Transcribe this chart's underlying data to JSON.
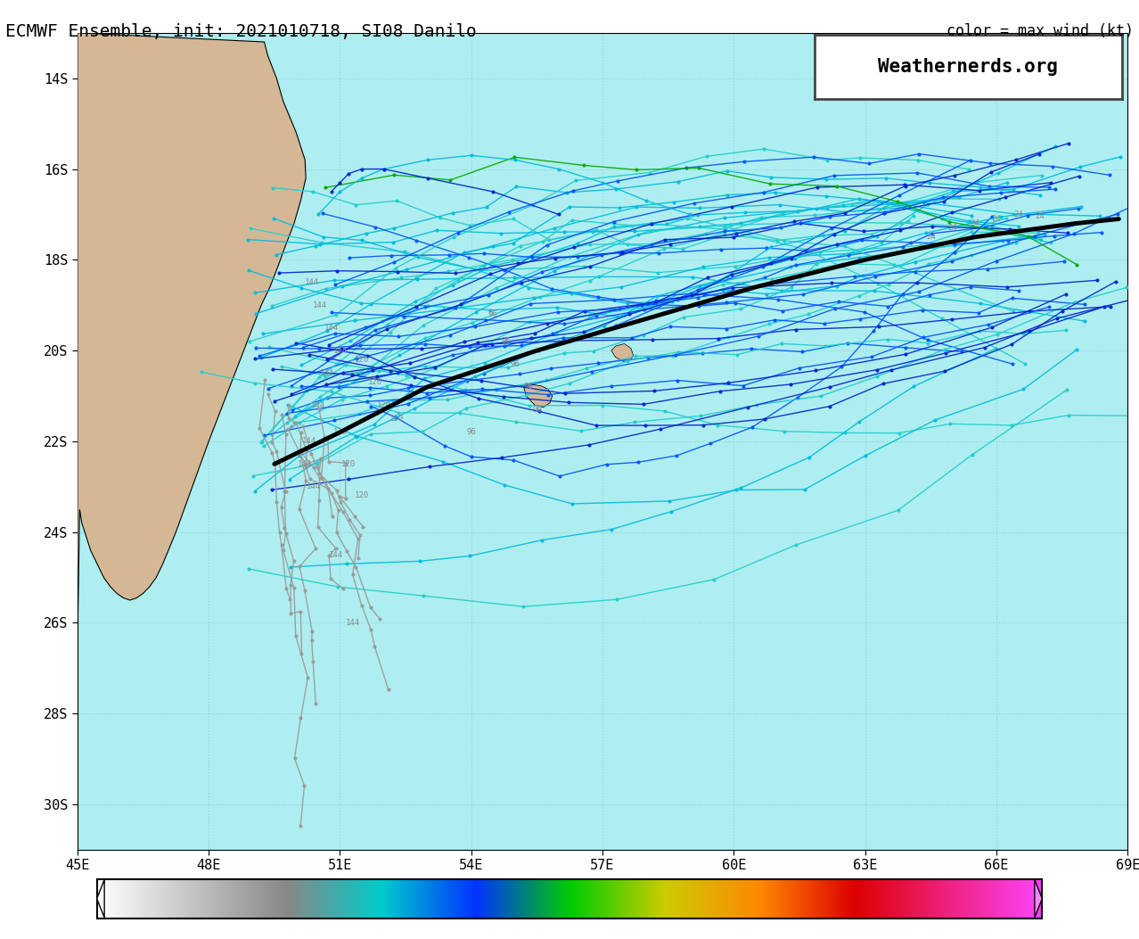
{
  "title": "ECMWF Ensemble, init: 2021010718, SI08 Danilo",
  "subtitle_right": "color = max wind (kt)",
  "watermark": "Weathernerds.org",
  "background_color": "#aeeef0",
  "land_color": "#d4b896",
  "xlim": [
    45,
    69
  ],
  "ylim": [
    -31,
    -13
  ],
  "xticks": [
    45,
    48,
    51,
    54,
    57,
    60,
    63,
    66,
    69
  ],
  "yticks": [
    -14,
    -16,
    -18,
    -20,
    -22,
    -24,
    -26,
    -28,
    -30
  ],
  "grid_color": "#90d8d8",
  "grid_style": ":",
  "main_track_color": "#000000",
  "main_track_lw": 3.5,
  "main_lons": [
    49.5,
    51.0,
    53.0,
    55.5,
    58.0,
    60.5,
    63.0,
    65.5,
    67.8,
    68.8
  ],
  "main_lats": [
    -22.5,
    -21.8,
    -20.8,
    -20.0,
    -19.3,
    -18.6,
    -18.0,
    -17.5,
    -17.2,
    -17.1
  ]
}
